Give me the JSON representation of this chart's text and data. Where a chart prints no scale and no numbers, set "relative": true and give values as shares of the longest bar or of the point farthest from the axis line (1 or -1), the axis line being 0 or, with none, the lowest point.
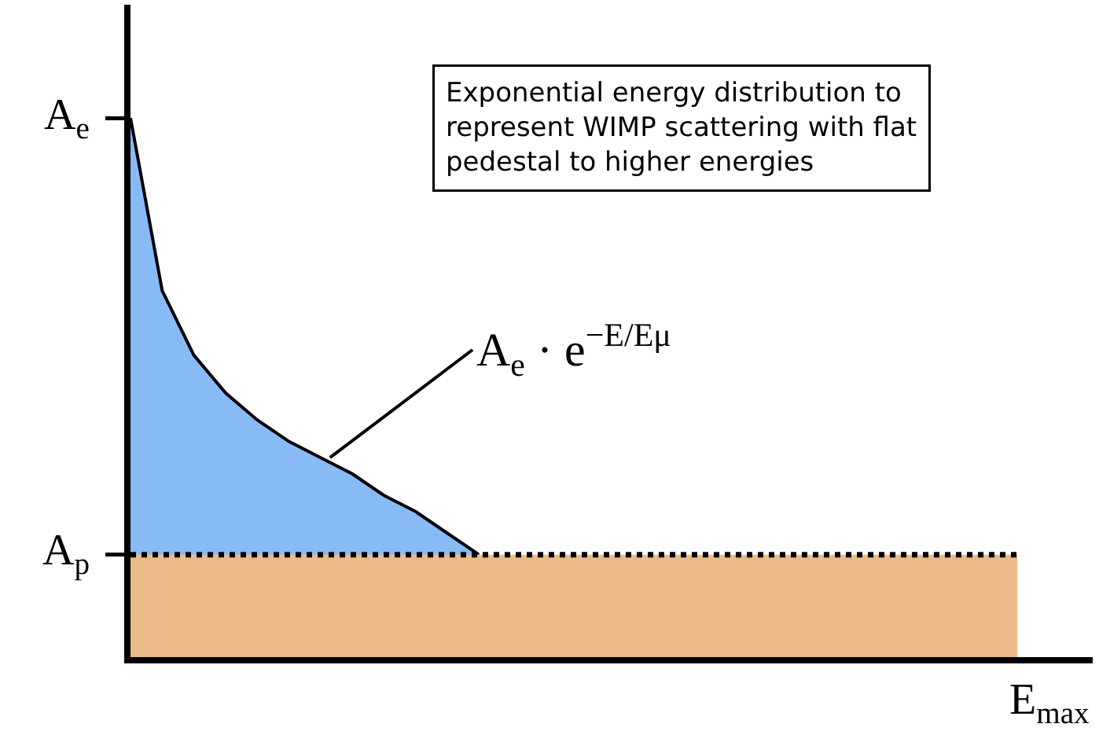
{
  "chart_data": {
    "type": "area",
    "relative": true,
    "xlabel": "E$_{max}$",
    "categories": [
      null,
      null,
      null,
      null,
      null,
      null,
      null,
      null,
      null,
      null,
      null,
      null,
      null,
      null,
      null,
      null,
      null,
      null,
      null,
      null,
      null,
      null,
      null,
      null,
      null,
      null,
      null,
      null,
      null
    ],
    "series": [
      {
        "color": "#88bbf6",
        "line_style": "solid",
        "values": [
          1,
          0.68,
          0.56,
          0.49,
          0.44,
          0.4,
          0.37,
          0.34,
          0.3,
          0.27,
          0.23,
          0.19,
          null,
          null,
          null,
          null,
          null,
          null,
          null,
          null,
          null,
          null,
          null,
          null,
          null,
          null,
          null,
          null,
          null
        ]
      },
      {
        "color": "#ebba8a",
        "line_style": "dotted",
        "values": [
          0.19,
          0.19,
          0.19,
          0.19,
          0.19,
          0.19,
          0.19,
          0.19,
          0.19,
          0.19,
          0.19,
          0.19,
          0.19,
          0.19,
          0.19,
          0.19,
          0.19,
          0.19,
          0.19,
          0.19,
          0.19,
          0.19,
          0.19,
          0.19,
          0.19,
          0.19,
          0.19,
          0.19,
          0.19
        ]
      }
    ],
    "annotations": [
      "A$_{e}$",
      "A$_{p}$",
      "Exponential energy distribution to\nrepresent WIMP scattering with flat\npedestal to higher energies",
      "A$_{e}$ · e$^{−E/Eμ}$"
    ],
    "grid": false,
    "legend": false
  }
}
